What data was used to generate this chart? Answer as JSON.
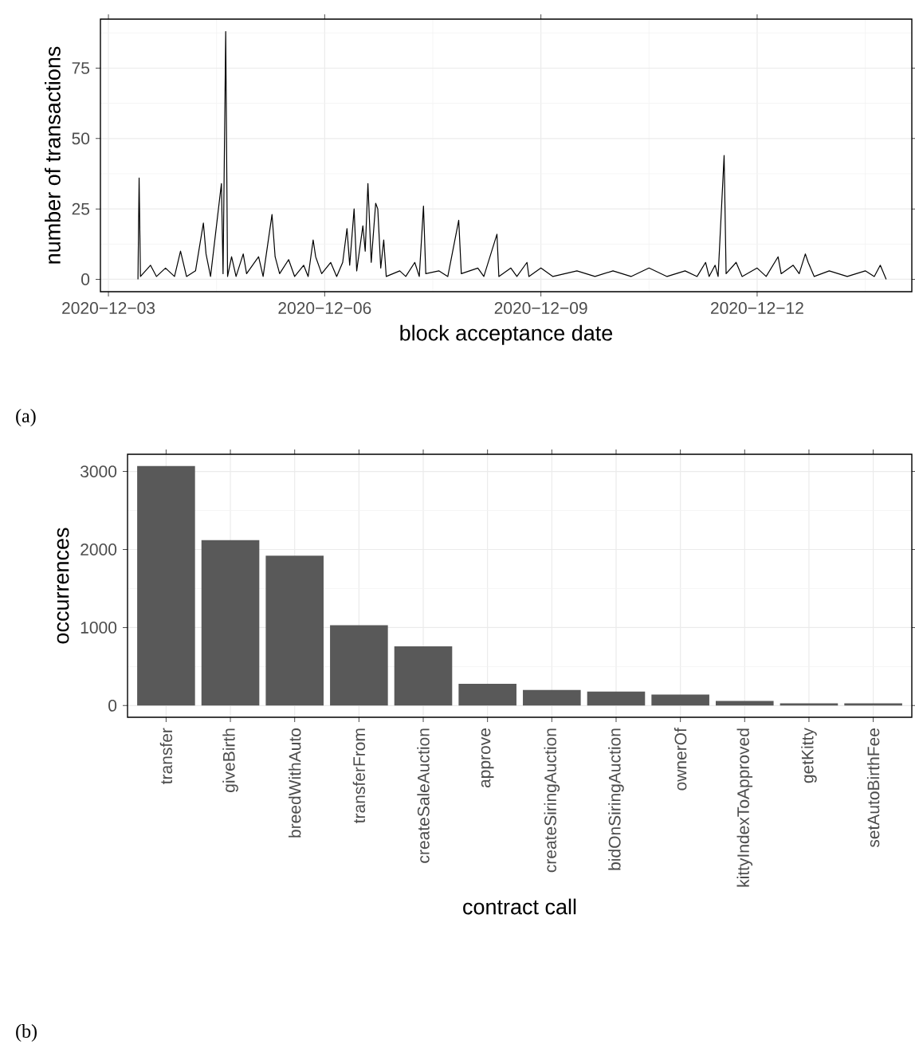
{
  "chart_data": [
    {
      "type": "line",
      "xlabel": "block acceptance date",
      "ylabel": "number of transactions",
      "annotations": [
        "(a)"
      ],
      "grid": true,
      "xlim": [
        "2020-12-02T21:20",
        "2020-12-14T03:30"
      ],
      "ylim": [
        -4.4,
        92.4
      ],
      "xticks": [
        {
          "value": "2020-12-03",
          "label": "2020−12−03"
        },
        {
          "value": "2020-12-06",
          "label": "2020−12−06"
        },
        {
          "value": "2020-12-09",
          "label": "2020−12−09"
        },
        {
          "value": "2020-12-12",
          "label": "2020−12−12"
        }
      ],
      "yticks": [
        0,
        25,
        50,
        75
      ],
      "series": [
        {
          "color": "#000000",
          "x": [
            "2020-12-03T09:50",
            "2020-12-03T10:13",
            "2020-12-03T10:40",
            "2020-12-03T14:00",
            "2020-12-03T16:00",
            "2020-12-03T19:00",
            "2020-12-03T22:00",
            "2020-12-04T00:00",
            "2020-12-04T02:00",
            "2020-12-04T05:00",
            "2020-12-04T07:37",
            "2020-12-04T08:30",
            "2020-12-04T10:00",
            "2020-12-04T13:37",
            "2020-12-04T14:10",
            "2020-12-04T15:03",
            "2020-12-04T15:40",
            "2020-12-04T17:00",
            "2020-12-04T18:30",
            "2020-12-04T20:53",
            "2020-12-04T22:00",
            "2020-12-05T02:00",
            "2020-12-05T03:30",
            "2020-12-05T06:28",
            "2020-12-05T07:30",
            "2020-12-05T09:00",
            "2020-12-05T12:00",
            "2020-12-05T14:00",
            "2020-12-05T17:00",
            "2020-12-05T18:30",
            "2020-12-05T20:10",
            "2020-12-05T21:00",
            "2020-12-05T23:00",
            "2020-12-06T02:00",
            "2020-12-06T04:00",
            "2020-12-06T06:00",
            "2020-12-06T07:26",
            "2020-12-06T08:20",
            "2020-12-06T09:48",
            "2020-12-06T10:40",
            "2020-12-06T12:43",
            "2020-12-06T13:30",
            "2020-12-06T14:24",
            "2020-12-06T15:30",
            "2020-12-06T16:59",
            "2020-12-06T17:41",
            "2020-12-06T18:40",
            "2020-12-06T19:40",
            "2020-12-06T20:30",
            "2020-12-07T01:00",
            "2020-12-07T03:00",
            "2020-12-07T06:00",
            "2020-12-07T07:30",
            "2020-12-07T08:54",
            "2020-12-07T09:40",
            "2020-12-07T14:00",
            "2020-12-07T17:00",
            "2020-12-07T20:38",
            "2020-12-07T21:30",
            "2020-12-08T03:00",
            "2020-12-08T05:00",
            "2020-12-08T09:22",
            "2020-12-08T10:00",
            "2020-12-08T14:00",
            "2020-12-08T16:00",
            "2020-12-08T19:22",
            "2020-12-08T20:00",
            "2020-12-09T00:00",
            "2020-12-09T04:00",
            "2020-12-09T12:00",
            "2020-12-09T18:00",
            "2020-12-10T00:00",
            "2020-12-10T06:00",
            "2020-12-10T12:00",
            "2020-12-10T18:00",
            "2020-12-11T00:00",
            "2020-12-11T04:00",
            "2020-12-11T06:50",
            "2020-12-11T08:00",
            "2020-12-11T10:00",
            "2020-12-11T11:00",
            "2020-12-11T13:00",
            "2020-12-11T13:40",
            "2020-12-11T17:00",
            "2020-12-11T19:00",
            "2020-12-12T00:00",
            "2020-12-12T03:00",
            "2020-12-12T06:58",
            "2020-12-12T08:00",
            "2020-12-12T12:00",
            "2020-12-12T14:00",
            "2020-12-12T16:03",
            "2020-12-12T17:00",
            "2020-12-12T19:00",
            "2020-12-13T00:00",
            "2020-12-13T06:00",
            "2020-12-13T12:00",
            "2020-12-13T15:00",
            "2020-12-13T17:00",
            "2020-12-13T18:58"
          ],
          "values": [
            0,
            36,
            1,
            5,
            1,
            4,
            1,
            10,
            1,
            3,
            20,
            9,
            1,
            34,
            2,
            88,
            1,
            8,
            1,
            9,
            2,
            8,
            1,
            23,
            8,
            2,
            7,
            1,
            5,
            1,
            14,
            8,
            2,
            6,
            1,
            6,
            18,
            5,
            25,
            3,
            19,
            10,
            34,
            6,
            27,
            25,
            4,
            14,
            1,
            3,
            1,
            6,
            1,
            26,
            2,
            3,
            1,
            21,
            2,
            4,
            1,
            16,
            1,
            4,
            1,
            6,
            1,
            4,
            1,
            3,
            1,
            3,
            1,
            4,
            1,
            3,
            1,
            6,
            1,
            5,
            1,
            44,
            2,
            6,
            1,
            4,
            1,
            8,
            2,
            5,
            2,
            9,
            6,
            1,
            3,
            1,
            3,
            1,
            5,
            0
          ]
        }
      ]
    },
    {
      "type": "bar",
      "xlabel": "contract call",
      "ylabel": "occurrences",
      "annotations": [
        "(b)"
      ],
      "grid": true,
      "categories": [
        "transfer",
        "giveBirth",
        "breedWithAuto",
        "transferFrom",
        "createSaleAuction",
        "approve",
        "createSiringAuction",
        "bidOnSiringAuction",
        "ownerOf",
        "kittyIndexToApproved",
        "getKitty",
        "setAutoBirthFee"
      ],
      "values": [
        3070,
        2120,
        1920,
        1030,
        760,
        280,
        200,
        180,
        140,
        60,
        30,
        30
      ],
      "color": "#595959",
      "ylim": [
        -150,
        3220
      ],
      "yticks": [
        0,
        1000,
        2000,
        3000
      ]
    }
  ]
}
